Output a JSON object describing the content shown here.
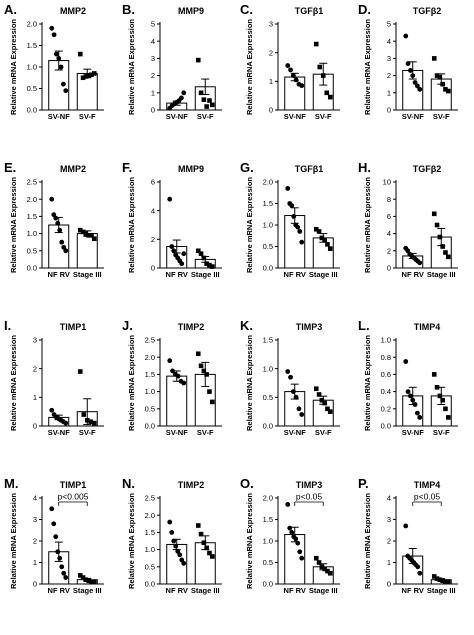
{
  "chart_data": [
    {
      "panel": "A.",
      "title": "MMP2",
      "type": "bar",
      "ylabel": "Relative mRNA Expression",
      "categories": [
        "SV-NF",
        "SV-F"
      ],
      "ylim": [
        0,
        2
      ],
      "yticks": [
        0,
        0.5,
        1,
        1.5,
        2
      ],
      "ytick_labels": [
        "0.0",
        "0.5",
        "1.0",
        "1.5",
        "2.0"
      ],
      "markers": [
        "circle",
        "square"
      ],
      "series": [
        {
          "mean": 1.15,
          "sem": 0.22,
          "points": [
            1.9,
            1.75,
            1.3,
            1.2,
            1.0,
            0.6,
            0.45
          ]
        },
        {
          "mean": 0.85,
          "sem": 0.1,
          "points": [
            1.3,
            0.75,
            0.78,
            0.8,
            0.82,
            0.85
          ]
        }
      ]
    },
    {
      "panel": "B.",
      "title": "MMP9",
      "type": "bar",
      "ylabel": "Relative mRNA Expression",
      "categories": [
        "SV-NF",
        "SV-F"
      ],
      "ylim": [
        0,
        5
      ],
      "yticks": [
        0,
        1,
        2,
        3,
        4,
        5
      ],
      "ytick_labels": [
        "0",
        "1",
        "2",
        "3",
        "4",
        "5"
      ],
      "markers": [
        "circle",
        "square"
      ],
      "series": [
        {
          "mean": 0.4,
          "sem": 0.12,
          "points": [
            0.1,
            0.25,
            0.35,
            0.45,
            0.55,
            0.7,
            1.0
          ]
        },
        {
          "mean": 1.35,
          "sem": 0.45,
          "points": [
            2.9,
            1.0,
            0.6,
            0.2,
            0.55,
            0.3
          ]
        }
      ]
    },
    {
      "panel": "C.",
      "title": "TGFβ1",
      "type": "bar",
      "ylabel": "Relative mRNA Expression",
      "categories": [
        "SV-NF",
        "SV-F"
      ],
      "ylim": [
        0,
        3
      ],
      "yticks": [
        0,
        1,
        2,
        3
      ],
      "ytick_labels": [
        "0",
        "1",
        "2",
        "3"
      ],
      "markers": [
        "circle",
        "square"
      ],
      "series": [
        {
          "mean": 1.15,
          "sem": 0.13,
          "points": [
            1.55,
            1.4,
            1.2,
            1.05,
            0.9,
            0.85
          ]
        },
        {
          "mean": 1.25,
          "sem": 0.38,
          "points": [
            2.3,
            1.5,
            1.2,
            0.6,
            0.45
          ]
        }
      ]
    },
    {
      "panel": "D.",
      "title": "TGFβ2",
      "type": "bar",
      "ylabel": "Relative mRNA Expression",
      "categories": [
        "SV-NF",
        "SV-F"
      ],
      "ylim": [
        0,
        5
      ],
      "yticks": [
        0,
        1,
        2,
        3,
        4,
        5
      ],
      "ytick_labels": [
        "0",
        "1",
        "2",
        "3",
        "4",
        "5"
      ],
      "markers": [
        "circle",
        "square"
      ],
      "series": [
        {
          "mean": 2.3,
          "sem": 0.5,
          "points": [
            4.3,
            2.7,
            2.3,
            2.0,
            1.6,
            1.4,
            1.2
          ]
        },
        {
          "mean": 1.8,
          "sem": 0.3,
          "points": [
            3.0,
            2.0,
            1.9,
            1.5,
            1.2,
            1.1
          ]
        }
      ]
    },
    {
      "panel": "E.",
      "title": "MMP2",
      "type": "bar",
      "ylabel": "Relative mRNA Expression",
      "categories": [
        "NF RV",
        "Stage III"
      ],
      "ylim": [
        0,
        2.5
      ],
      "yticks": [
        0,
        0.5,
        1,
        1.5,
        2,
        2.5
      ],
      "ytick_labels": [
        "0.0",
        "0.5",
        "1.0",
        "1.5",
        "2.0",
        "2.5"
      ],
      "markers": [
        "circle",
        "square"
      ],
      "series": [
        {
          "mean": 1.25,
          "sem": 0.22,
          "points": [
            2.0,
            1.55,
            1.45,
            1.3,
            1.1,
            0.75,
            0.6,
            0.5
          ]
        },
        {
          "mean": 1.0,
          "sem": 0.08,
          "points": [
            1.1,
            1.05,
            1.0,
            0.95,
            0.95,
            0.85
          ]
        }
      ]
    },
    {
      "panel": "F.",
      "title": "MMP9",
      "type": "bar",
      "ylabel": "Relative mRNA Expression",
      "categories": [
        "NF RV",
        "Stage III"
      ],
      "ylim": [
        0,
        6
      ],
      "yticks": [
        0,
        2,
        4,
        6
      ],
      "ytick_labels": [
        "0",
        "2",
        "4",
        "6"
      ],
      "markers": [
        "circle",
        "square"
      ],
      "series": [
        {
          "mean": 1.5,
          "sem": 0.45,
          "points": [
            4.8,
            1.5,
            1.2,
            0.9,
            0.7,
            0.5,
            0.3,
            1.0
          ]
        },
        {
          "mean": 0.6,
          "sem": 0.2,
          "points": [
            1.2,
            1.0,
            0.7,
            0.3,
            0.2,
            0.1
          ]
        }
      ]
    },
    {
      "panel": "G.",
      "title": "TGFβ1",
      "type": "bar",
      "ylabel": "Relative mRNA Expression",
      "categories": [
        "NF RV",
        "Stage III"
      ],
      "ylim": [
        0,
        2.0
      ],
      "yticks": [
        0,
        0.5,
        1,
        1.5,
        2
      ],
      "ytick_labels": [
        "0.0",
        "0.5",
        "1.0",
        "1.5",
        "2.0"
      ],
      "markers": [
        "circle",
        "square"
      ],
      "series": [
        {
          "mean": 1.22,
          "sem": 0.18,
          "points": [
            1.85,
            1.5,
            1.45,
            1.2,
            1.0,
            0.95,
            0.85,
            0.6
          ]
        },
        {
          "mean": 0.7,
          "sem": 0.1,
          "points": [
            0.9,
            0.85,
            0.7,
            0.65,
            0.55,
            0.45
          ]
        }
      ]
    },
    {
      "panel": "H.",
      "title": "TGFβ2",
      "type": "bar",
      "ylabel": "Relative mRNA Expression",
      "categories": [
        "NF RV",
        "Stage III"
      ],
      "ylim": [
        0,
        10
      ],
      "yticks": [
        0,
        2,
        4,
        6,
        8,
        10
      ],
      "ytick_labels": [
        "0",
        "2",
        "4",
        "6",
        "8",
        "10"
      ],
      "markers": [
        "circle",
        "square"
      ],
      "series": [
        {
          "mean": 1.4,
          "sem": 0.3,
          "points": [
            2.3,
            2.0,
            1.6,
            1.4,
            1.2,
            1.0,
            0.8,
            0.6
          ]
        },
        {
          "mean": 3.6,
          "sem": 1.0,
          "points": [
            6.3,
            5.0,
            3.6,
            2.5,
            1.8,
            1.3
          ]
        }
      ]
    },
    {
      "panel": "I.",
      "title": "TIMP1",
      "type": "bar",
      "ylabel": "Relative mRNA Expression",
      "categories": [
        "SV-NF",
        "SV-F"
      ],
      "ylim": [
        0,
        3
      ],
      "yticks": [
        0,
        1,
        2,
        3
      ],
      "ytick_labels": [
        "0",
        "1",
        "2",
        "3"
      ],
      "markers": [
        "circle",
        "square"
      ],
      "series": [
        {
          "mean": 0.3,
          "sem": 0.08,
          "points": [
            0.55,
            0.4,
            0.3,
            0.25,
            0.2,
            0.15,
            0.1
          ]
        },
        {
          "mean": 0.5,
          "sem": 0.45,
          "points": [
            1.9,
            0.4,
            0.2,
            0.15,
            0.1
          ]
        }
      ]
    },
    {
      "panel": "J.",
      "title": "TIMP2",
      "type": "bar",
      "ylabel": "Relative mRNA Expression",
      "categories": [
        "SV-NF",
        "SV-F"
      ],
      "ylim": [
        0,
        2.5
      ],
      "yticks": [
        0,
        0.5,
        1,
        1.5,
        2,
        2.5
      ],
      "ytick_labels": [
        "0.0",
        "0.5",
        "1.0",
        "1.5",
        "2.0",
        "2.5"
      ],
      "markers": [
        "circle",
        "square"
      ],
      "series": [
        {
          "mean": 1.45,
          "sem": 0.15,
          "points": [
            1.9,
            1.6,
            1.5,
            1.45,
            1.3,
            1.25
          ]
        },
        {
          "mean": 1.5,
          "sem": 0.35,
          "points": [
            2.1,
            1.75,
            1.6,
            1.5,
            1.0,
            0.7
          ]
        }
      ]
    },
    {
      "panel": "K.",
      "title": "TIMP3",
      "type": "bar",
      "ylabel": "Relative mRNA Expression",
      "categories": [
        "SV-NF",
        "SV-F"
      ],
      "ylim": [
        0,
        1.5
      ],
      "yticks": [
        0,
        0.5,
        1,
        1.5
      ],
      "ytick_labels": [
        "0.0",
        "0.5",
        "1.0",
        "1.5"
      ],
      "markers": [
        "circle",
        "square"
      ],
      "series": [
        {
          "mean": 0.6,
          "sem": 0.13,
          "points": [
            0.95,
            0.85,
            0.6,
            0.5,
            0.3,
            0.2
          ]
        },
        {
          "mean": 0.45,
          "sem": 0.07,
          "points": [
            0.65,
            0.55,
            0.45,
            0.4,
            0.3,
            0.25
          ]
        }
      ]
    },
    {
      "panel": "L.",
      "title": "TIMP4",
      "type": "bar",
      "ylabel": "Relative mRNA Expression",
      "categories": [
        "SV-NF",
        "SV-F"
      ],
      "ylim": [
        0,
        1.0
      ],
      "yticks": [
        0,
        0.2,
        0.4,
        0.6,
        0.8,
        1.0
      ],
      "ytick_labels": [
        "0.0",
        "0.2",
        "0.4",
        "0.6",
        "0.8",
        "1.0"
      ],
      "markers": [
        "circle",
        "square"
      ],
      "series": [
        {
          "mean": 0.35,
          "sem": 0.1,
          "points": [
            0.75,
            0.4,
            0.35,
            0.3,
            0.25,
            0.15,
            0.1
          ]
        },
        {
          "mean": 0.35,
          "sem": 0.1,
          "points": [
            0.6,
            0.45,
            0.35,
            0.3,
            0.2,
            0.1
          ]
        }
      ]
    },
    {
      "panel": "M.",
      "title": "TIMP1",
      "type": "bar",
      "ylabel": "Relative mRNA Expression",
      "categories": [
        "NF RV",
        "Stage III"
      ],
      "ylim": [
        0,
        4
      ],
      "yticks": [
        0,
        1,
        2,
        3,
        4
      ],
      "ytick_labels": [
        "0",
        "1",
        "2",
        "3",
        "4"
      ],
      "markers": [
        "circle",
        "square"
      ],
      "annotation": "p<0.005",
      "series": [
        {
          "mean": 1.5,
          "sem": 0.45,
          "points": [
            3.5,
            2.8,
            2.2,
            1.5,
            1.2,
            0.8,
            0.5,
            0.3
          ]
        },
        {
          "mean": 0.2,
          "sem": 0.06,
          "points": [
            0.4,
            0.3,
            0.2,
            0.15,
            0.1,
            0.1
          ]
        }
      ]
    },
    {
      "panel": "N.",
      "title": "TIMP2",
      "type": "bar",
      "ylabel": "Relative mRNA Expression",
      "categories": [
        "NF RV",
        "Stage III"
      ],
      "ylim": [
        0,
        2.5
      ],
      "yticks": [
        0,
        0.5,
        1,
        1.5,
        2,
        2.5
      ],
      "ytick_labels": [
        "0.0",
        "0.5",
        "1.0",
        "1.5",
        "2.0",
        "2.5"
      ],
      "markers": [
        "circle",
        "square"
      ],
      "series": [
        {
          "mean": 1.15,
          "sem": 0.15,
          "points": [
            1.8,
            1.5,
            1.25,
            1.1,
            0.95,
            0.85,
            0.7,
            0.6
          ]
        },
        {
          "mean": 1.2,
          "sem": 0.2,
          "points": [
            1.7,
            1.45,
            1.2,
            1.05,
            0.9,
            0.8
          ]
        }
      ]
    },
    {
      "panel": "O.",
      "title": "TIMP3",
      "type": "bar",
      "ylabel": "Relative mRNA Expression",
      "categories": [
        "NF RV",
        "Stage III"
      ],
      "ylim": [
        0,
        2.0
      ],
      "yticks": [
        0,
        0.5,
        1,
        1.5,
        2
      ],
      "ytick_labels": [
        "0.0",
        "0.5",
        "1.0",
        "1.5",
        "2.0"
      ],
      "markers": [
        "circle",
        "square"
      ],
      "annotation": "p<0.05",
      "series": [
        {
          "mean": 1.15,
          "sem": 0.17,
          "points": [
            1.85,
            1.3,
            1.2,
            1.1,
            1.05,
            0.95,
            0.75,
            0.6
          ]
        },
        {
          "mean": 0.4,
          "sem": 0.07,
          "points": [
            0.6,
            0.5,
            0.4,
            0.35,
            0.3,
            0.25
          ]
        }
      ]
    },
    {
      "panel": "P.",
      "title": "TIMP4",
      "type": "bar",
      "ylabel": "Relative mRNA Expression",
      "categories": [
        "NF RV",
        "Stage III"
      ],
      "ylim": [
        0,
        4
      ],
      "yticks": [
        0,
        1,
        2,
        3,
        4
      ],
      "ytick_labels": [
        "0",
        "1",
        "2",
        "3",
        "4"
      ],
      "markers": [
        "circle",
        "square"
      ],
      "annotation": "p<0.05",
      "series": [
        {
          "mean": 1.3,
          "sem": 0.35,
          "points": [
            2.7,
            1.3,
            1.2,
            1.1,
            1.0,
            0.9,
            0.8,
            0.5
          ]
        },
        {
          "mean": 0.2,
          "sem": 0.05,
          "points": [
            0.35,
            0.25,
            0.2,
            0.15,
            0.1,
            0.1
          ]
        }
      ]
    }
  ]
}
